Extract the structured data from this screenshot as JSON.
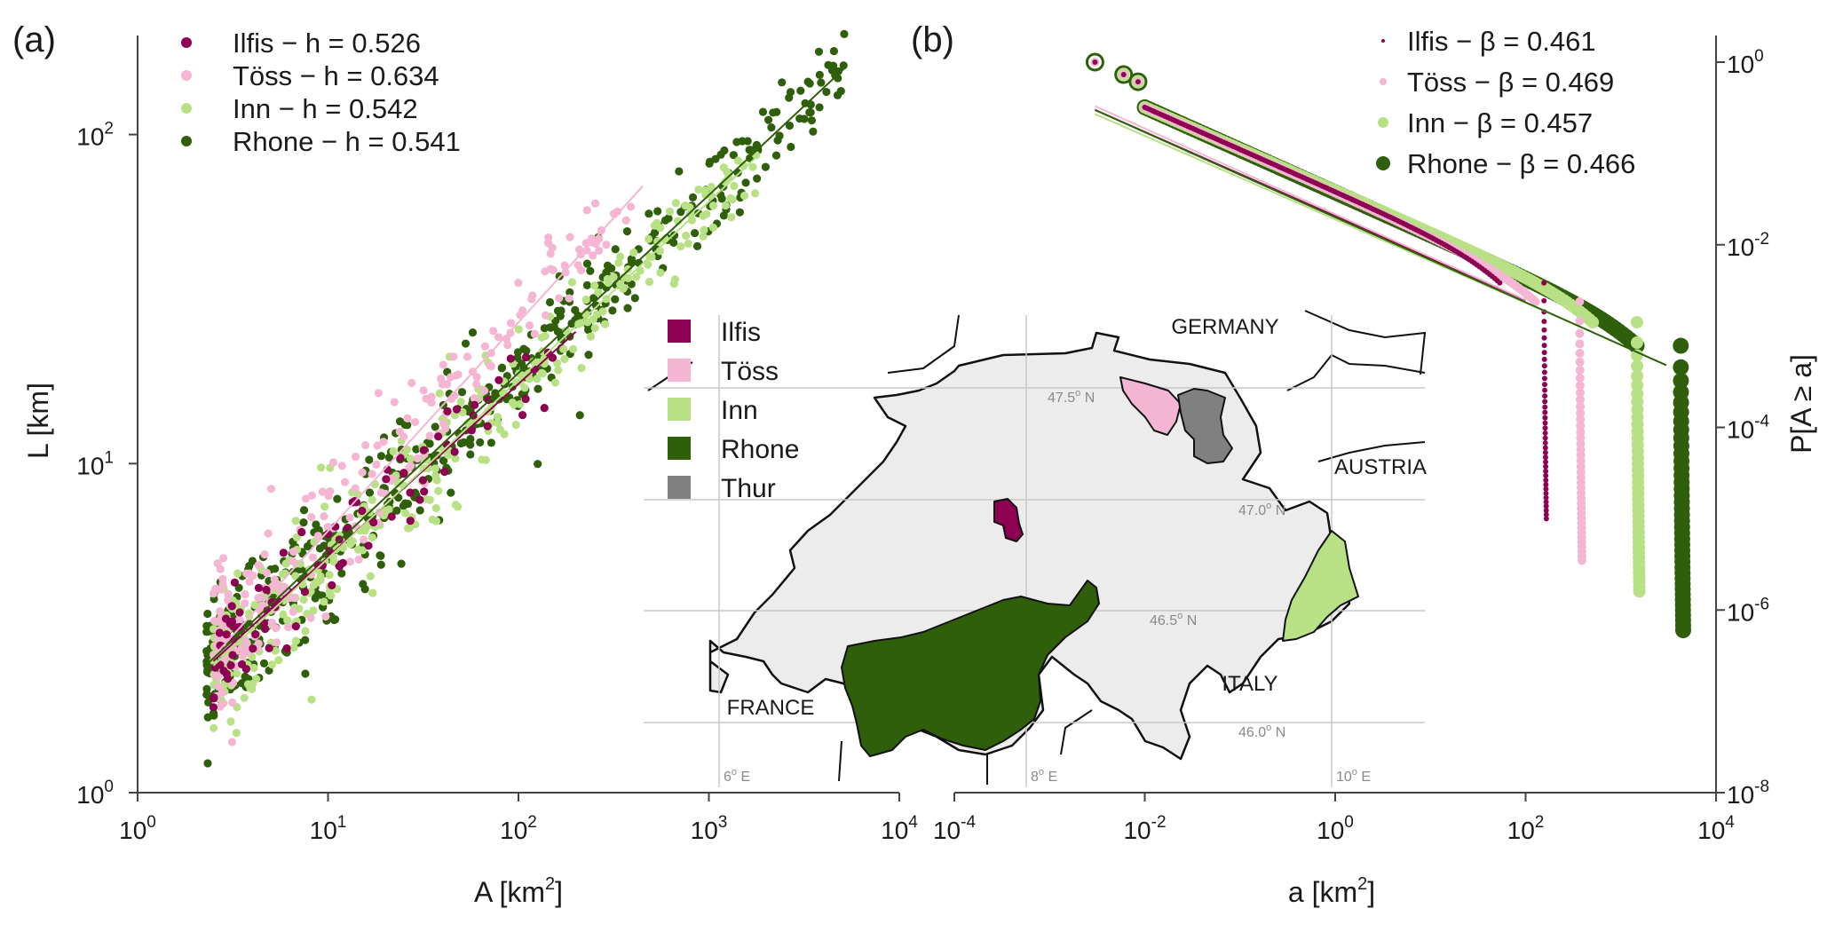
{
  "colors": {
    "ilfis": "#8e0152",
    "toss": "#f4b6d2",
    "inn": "#b8e186",
    "rhone": "#2f5f0a",
    "thur": "#808080",
    "land": "#ececec",
    "grid": "#c8c8c8"
  },
  "chart_data": [
    {
      "type": "scatter",
      "panel_label": "(a)",
      "xlabel": "A [km",
      "xlabel_sup": "2",
      "xlabel_end": "]",
      "ylabel": "L [km]",
      "xscale": "log",
      "yscale": "log",
      "xlim": [
        1,
        10000
      ],
      "ylim": [
        1,
        200
      ],
      "xticks": [
        {
          "base": "10",
          "exp": "0"
        },
        {
          "base": "10",
          "exp": "1"
        },
        {
          "base": "10",
          "exp": "2"
        },
        {
          "base": "10",
          "exp": "3"
        },
        {
          "base": "10",
          "exp": "4"
        }
      ],
      "yticks": [
        {
          "base": "10",
          "exp": "0"
        },
        {
          "base": "10",
          "exp": "1"
        },
        {
          "base": "10",
          "exp": "2"
        }
      ],
      "legend_position": "top-left",
      "series": [
        {
          "name": "Ilfis",
          "h": "0.526",
          "legend": "Ilfis  −  h =  0.526",
          "color_key": "ilfis",
          "A_range": [
            2.5,
            200
          ],
          "fit": {
            "c": 1.55,
            "exp": 0.526
          }
        },
        {
          "name": "Töss",
          "h": "0.634",
          "legend": "Töss  −  h =  0.634",
          "color_key": "toss",
          "A_range": [
            2.5,
            450
          ],
          "fit": {
            "c": 1.45,
            "exp": 0.634
          }
        },
        {
          "name": "Inn",
          "h": "0.542",
          "legend": "Inn  −  h =  0.542",
          "color_key": "inn",
          "A_range": [
            2.5,
            1800
          ],
          "fit": {
            "c": 1.48,
            "exp": 0.542
          }
        },
        {
          "name": "Rhone",
          "h": "0.541",
          "legend": "Rhone  −  h =  0.541",
          "color_key": "rhone",
          "A_range": [
            2.3,
            5200
          ],
          "fit": {
            "c": 1.56,
            "exp": 0.541
          }
        }
      ]
    },
    {
      "type": "scatter",
      "panel_label": "(b)",
      "xlabel": "a [km",
      "xlabel_sup": "2",
      "xlabel_end": "]",
      "ylabel": "P[A ≥ a]",
      "xscale": "log",
      "yscale": "log",
      "xlim": [
        0.0001,
        10000
      ],
      "ylim": [
        1e-08,
        2
      ],
      "xticks": [
        {
          "base": "10",
          "exp": "-4"
        },
        {
          "base": "10",
          "exp": "-2"
        },
        {
          "base": "10",
          "exp": "0"
        },
        {
          "base": "10",
          "exp": "2"
        },
        {
          "base": "10",
          "exp": "4"
        }
      ],
      "yticks": [
        {
          "base": "10",
          "exp": "-8"
        },
        {
          "base": "10",
          "exp": "-6"
        },
        {
          "base": "10",
          "exp": "-4"
        },
        {
          "base": "10",
          "exp": "-2"
        },
        {
          "base": "10",
          "exp": "0"
        }
      ],
      "y_axis_side": "right",
      "legend_position": "top-right",
      "series": [
        {
          "name": "Ilfis",
          "beta": "0.461",
          "legend": "Ilfis  −  β =  0.461",
          "color_key": "ilfis",
          "a_min": 0.003,
          "a_max": 190,
          "p_min": 1e-05,
          "marker": 3,
          "fit": {
            "a0": 0.003,
            "a1": 100,
            "p0": 0.3,
            "exp": 0.461
          }
        },
        {
          "name": "Töss",
          "beta": "0.469",
          "legend": "Töss  −  β =  0.469",
          "color_key": "toss",
          "a_min": 0.003,
          "a_max": 450,
          "p_min": 3.5e-06,
          "marker": 5,
          "fit": {
            "a0": 0.003,
            "a1": 100,
            "p0": 0.33,
            "exp": 0.469
          }
        },
        {
          "name": "Inn",
          "beta": "0.457",
          "legend": "Inn  −  β =  0.457",
          "color_key": "inn",
          "a_min": 0.006,
          "a_max": 1800,
          "p_min": 1.6e-06,
          "marker": 7,
          "fit": {
            "a0": 0.003,
            "a1": 500,
            "p0": 0.27,
            "exp": 0.457
          }
        },
        {
          "name": "Rhone",
          "beta": "0.466",
          "legend": "Rhone  −  β =  0.466",
          "color_key": "rhone",
          "a_min": 0.003,
          "a_max": 5200,
          "p_min": 6e-07,
          "marker": 9,
          "fit": {
            "a0": 0.003,
            "a1": 3000,
            "p0": 0.3,
            "exp": 0.466
          }
        }
      ]
    }
  ],
  "map": {
    "legend": [
      {
        "label": "Ilfis",
        "color_key": "ilfis"
      },
      {
        "label": "Töss",
        "color_key": "toss"
      },
      {
        "label": "Inn",
        "color_key": "inn"
      },
      {
        "label": "Rhone",
        "color_key": "rhone"
      },
      {
        "label": "Thur",
        "color_key": "thur"
      }
    ],
    "countries": {
      "germany": "GERMANY",
      "austria": "AUSTRIA",
      "italy": "ITALY",
      "france": "FRANCE"
    },
    "lat_labels": [
      {
        "deg": "47.5",
        "sup": "o",
        "hemi": " N"
      },
      {
        "deg": "47.0",
        "sup": "o",
        "hemi": " N"
      },
      {
        "deg": "46.5",
        "sup": "o",
        "hemi": " N"
      },
      {
        "deg": "46.0",
        "sup": "o",
        "hemi": " N"
      }
    ],
    "lon_labels": [
      {
        "deg": "6",
        "sup": "o",
        "hemi": " E"
      },
      {
        "deg": "8",
        "sup": "o",
        "hemi": " E"
      },
      {
        "deg": "10",
        "sup": "o",
        "hemi": " E"
      }
    ]
  }
}
